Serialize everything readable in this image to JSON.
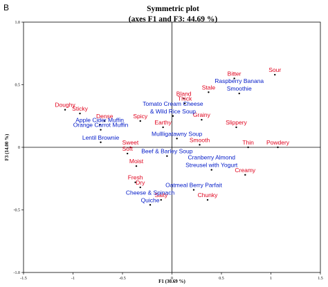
{
  "panel_label": "B",
  "chart_data": {
    "type": "scatter",
    "title": "Symmetric plot",
    "subtitle": "(axes F1 and F3: 44.69 %)",
    "xlabel": "F1 (30.69 %)",
    "ylabel": "F3 (14.00 %)",
    "xlim": [
      -1.5,
      1.5
    ],
    "ylim": [
      -1.0,
      1.0
    ],
    "x_ticks": [
      "-1.5",
      "-1",
      "-0.5",
      "0",
      "0.5",
      "1",
      "1.5"
    ],
    "x_tick_values": [
      -1.5,
      -1.0,
      -0.5,
      0.0,
      0.5,
      1.0,
      1.5
    ],
    "y_ticks": [
      "1.0",
      "0.5",
      "0",
      "-0.5",
      "-1.0"
    ],
    "y_tick_values": [
      1.0,
      0.5,
      0.0,
      -0.5,
      -1.0
    ],
    "grid": false,
    "attribute_color": "#e0001b",
    "product_color": "#0019c8",
    "attributes": [
      {
        "label": "Sour",
        "x": 1.04,
        "y": 0.58
      },
      {
        "label": "Bitter",
        "x": 0.63,
        "y": 0.55
      },
      {
        "label": "Stale",
        "x": 0.37,
        "y": 0.44
      },
      {
        "label": "Bland",
        "x": 0.12,
        "y": 0.39
      },
      {
        "label": "Thick",
        "x": 0.13,
        "y": 0.35
      },
      {
        "label": "Doughy",
        "x": -1.08,
        "y": 0.3
      },
      {
        "label": "Sticky",
        "x": -0.93,
        "y": 0.27
      },
      {
        "label": "Dense",
        "x": -0.68,
        "y": 0.21
      },
      {
        "label": "Spicy",
        "x": -0.32,
        "y": 0.21
      },
      {
        "label": "Grainy",
        "x": 0.3,
        "y": 0.22
      },
      {
        "label": "Earthy",
        "x": -0.09,
        "y": 0.16
      },
      {
        "label": "Slippery",
        "x": 0.65,
        "y": 0.16
      },
      {
        "label": "Smooth",
        "x": 0.28,
        "y": 0.02
      },
      {
        "label": "Powdery",
        "x": 1.07,
        "y": 0.0
      },
      {
        "label": "Thin",
        "x": 0.77,
        "y": 0.0
      },
      {
        "label": "Sweet",
        "x": -0.42,
        "y": 0.0
      },
      {
        "label": "Soft",
        "x": -0.45,
        "y": -0.05
      },
      {
        "label": "Moist",
        "x": -0.36,
        "y": -0.15
      },
      {
        "label": "Creamy",
        "x": 0.74,
        "y": -0.22
      },
      {
        "label": "Fresh",
        "x": -0.37,
        "y": -0.28
      },
      {
        "label": "Dry",
        "x": -0.32,
        "y": -0.32
      },
      {
        "label": "Salty",
        "x": -0.11,
        "y": -0.42
      },
      {
        "label": "Chunky",
        "x": 0.36,
        "y": -0.42
      }
    ],
    "products": [
      {
        "label": "Raspberry Banana Smoothie",
        "lines": [
          "Raspberry Banana",
          "Smoothie"
        ],
        "x": 0.68,
        "y": 0.43
      },
      {
        "label": "Tomato Cream Cheese & Wild Rice Soup",
        "lines": [
          "Tomato Cream Cheese",
          "& Wild Rice Soup"
        ],
        "x": 0.01,
        "y": 0.25
      },
      {
        "label": "Apple Cider Muffin",
        "x": -0.73,
        "y": 0.18
      },
      {
        "label": "Orange Carrot Muffin",
        "x": -0.72,
        "y": 0.14
      },
      {
        "label": "Lentil Brownie",
        "x": -0.72,
        "y": 0.04
      },
      {
        "label": "Mullligatawny Soup",
        "x": 0.05,
        "y": 0.07
      },
      {
        "label": "Beef & Barley Soup",
        "x": -0.05,
        "y": -0.07
      },
      {
        "label": "Cranberry Almond Streusel with Yogurt",
        "lines": [
          "Cranberry Almond",
          "Streusel with Yogurt"
        ],
        "x": 0.4,
        "y": -0.18
      },
      {
        "label": "Oatmeal Berry Parfait",
        "x": 0.22,
        "y": -0.34
      },
      {
        "label": "Cheese & Spinach Quiche",
        "lines": [
          "Cheese & Spinach",
          "Quiche"
        ],
        "x": -0.22,
        "y": -0.46
      }
    ]
  }
}
